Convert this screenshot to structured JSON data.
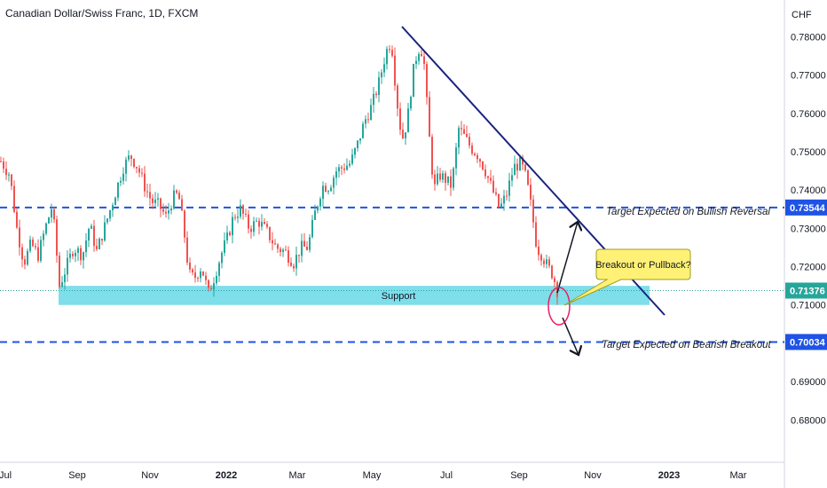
{
  "chart_data": {
    "type": "candlestick",
    "title": "Canadian Dollar/Swiss Franc, 1D, FXCM",
    "currency_label": "CHF",
    "x_tick_labels": [
      "Jul",
      "Sep",
      "Nov",
      "2022",
      "Mar",
      "May",
      "Jul",
      "Sep",
      "Nov",
      "2023",
      "Mar"
    ],
    "y_ticks": [
      "0.78000",
      "0.77000",
      "0.76000",
      "0.75000",
      "0.74000",
      "0.73000",
      "0.72000",
      "0.71000",
      "0.70000",
      "0.69000",
      "0.68000"
    ],
    "ylim": [
      0.6715,
      0.7845
    ],
    "price_path": [
      [
        0,
        0.7475
      ],
      [
        10,
        0.744
      ],
      [
        18,
        0.73
      ],
      [
        26,
        0.721
      ],
      [
        34,
        0.726
      ],
      [
        42,
        0.723
      ],
      [
        50,
        0.73
      ],
      [
        58,
        0.736
      ],
      [
        66,
        0.715
      ],
      [
        74,
        0.72
      ],
      [
        82,
        0.725
      ],
      [
        92,
        0.723
      ],
      [
        100,
        0.731
      ],
      [
        108,
        0.724
      ],
      [
        115,
        0.729
      ],
      [
        122,
        0.734
      ],
      [
        130,
        0.74
      ],
      [
        138,
        0.746
      ],
      [
        146,
        0.749
      ],
      [
        154,
        0.746
      ],
      [
        162,
        0.741
      ],
      [
        170,
        0.737
      ],
      [
        178,
        0.736
      ],
      [
        186,
        0.733
      ],
      [
        194,
        0.738
      ],
      [
        200,
        0.739
      ],
      [
        206,
        0.73
      ],
      [
        212,
        0.718
      ],
      [
        218,
        0.717
      ],
      [
        226,
        0.72
      ],
      [
        234,
        0.713
      ],
      [
        240,
        0.717
      ],
      [
        248,
        0.723
      ],
      [
        256,
        0.728
      ],
      [
        262,
        0.733
      ],
      [
        270,
        0.735
      ],
      [
        280,
        0.73
      ],
      [
        290,
        0.732
      ],
      [
        300,
        0.729
      ],
      [
        310,
        0.725
      ],
      [
        320,
        0.724
      ],
      [
        330,
        0.721
      ],
      [
        338,
        0.725
      ],
      [
        346,
        0.725
      ],
      [
        354,
        0.734
      ],
      [
        362,
        0.741
      ],
      [
        370,
        0.741
      ],
      [
        378,
        0.745
      ],
      [
        386,
        0.746
      ],
      [
        394,
        0.747
      ],
      [
        402,
        0.752
      ],
      [
        410,
        0.758
      ],
      [
        418,
        0.762
      ],
      [
        426,
        0.768
      ],
      [
        434,
        0.776
      ],
      [
        440,
        0.779
      ],
      [
        446,
        0.764
      ],
      [
        452,
        0.753
      ],
      [
        458,
        0.758
      ],
      [
        464,
        0.77
      ],
      [
        470,
        0.777
      ],
      [
        476,
        0.776
      ],
      [
        482,
        0.756
      ],
      [
        488,
        0.74
      ],
      [
        494,
        0.744
      ],
      [
        500,
        0.743
      ],
      [
        508,
        0.741
      ],
      [
        516,
        0.756
      ],
      [
        522,
        0.754
      ],
      [
        530,
        0.751
      ],
      [
        538,
        0.749
      ],
      [
        546,
        0.745
      ],
      [
        554,
        0.74
      ],
      [
        562,
        0.735
      ],
      [
        570,
        0.739
      ],
      [
        578,
        0.746
      ],
      [
        586,
        0.747
      ],
      [
        592,
        0.743
      ],
      [
        598,
        0.735
      ],
      [
        604,
        0.725
      ],
      [
        610,
        0.723
      ],
      [
        616,
        0.72
      ],
      [
        622,
        0.718
      ],
      [
        627,
        0.7138
      ]
    ],
    "current_price": 0.71376,
    "price_tags": [
      {
        "value": 0.73544,
        "label": "0.73544"
      },
      {
        "value": 0.71376,
        "label": "0.71376"
      },
      {
        "value": 0.70034,
        "label": "0.70034"
      }
    ],
    "support_zone": {
      "label": "Support",
      "low": 0.71,
      "high": 0.715
    },
    "annotations": {
      "bullish": "Target Expected on Bullish Reversal",
      "bearish": "Target Expected on Bearish Breakout",
      "callout": "Breakout or Pullback?"
    },
    "colors": {
      "up": "#26a69a",
      "down": "#ef5350",
      "trendline": "#1a237e",
      "target_line": "#1e53e5",
      "tag_bg": "#1e53e5",
      "support_fill": "#67d8e6",
      "callout_fill": "#fff176",
      "circle": "#e91e63",
      "current_tag_bg": "#26a69a",
      "current_line": "#26a69a"
    }
  }
}
